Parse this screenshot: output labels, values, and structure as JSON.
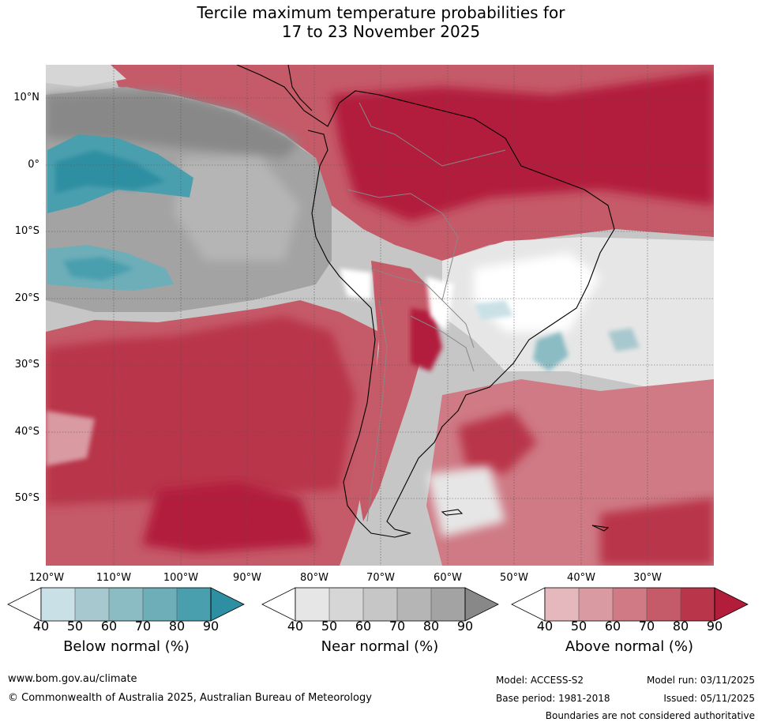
{
  "title": {
    "line1": "Tercile maximum temperature probabilities for",
    "line2": "17 to 23 November 2025"
  },
  "axes": {
    "lat_labels": [
      "10°N",
      "0°",
      "10°S",
      "20°S",
      "30°S",
      "40°S",
      "50°S"
    ],
    "lon_labels": [
      "120°W",
      "110°W",
      "100°W",
      "90°W",
      "80°W",
      "70°W",
      "60°W",
      "50°W",
      "40°W",
      "30°W"
    ]
  },
  "colorbars": {
    "below": {
      "label": "Below normal (%)",
      "ticks": [
        "40",
        "50",
        "60",
        "70",
        "80",
        "90"
      ],
      "colors": [
        "#ffffff",
        "#c9e1e6",
        "#a7c8ce",
        "#8bbcc3",
        "#6daeb9",
        "#4a9fae",
        "#2e8fa2"
      ]
    },
    "near": {
      "label": "Near normal (%)",
      "ticks": [
        "40",
        "50",
        "60",
        "70",
        "80",
        "90"
      ],
      "colors": [
        "#ffffff",
        "#e6e6e6",
        "#d6d6d6",
        "#c6c6c6",
        "#b5b5b5",
        "#a3a3a3",
        "#888888"
      ]
    },
    "above": {
      "label": "Above normal (%)",
      "ticks": [
        "40",
        "50",
        "60",
        "70",
        "80",
        "90"
      ],
      "colors": [
        "#ffffff",
        "#e4b8bd",
        "#d99aa2",
        "#cf7a85",
        "#c55a68",
        "#b93549",
        "#b21d3c"
      ]
    }
  },
  "footer": {
    "website": "www.bom.gov.au/climate",
    "copyright": "© Commonwealth of Australia 2025, Australian Bureau of Meteorology",
    "model": "Model: ACCESS-S2",
    "base_period": "Base period: 1981-2018",
    "model_run": "Model run: 03/11/2025",
    "issued": "Issued: 05/11/2025",
    "disclaimer": "Boundaries are not considered authoritative"
  }
}
